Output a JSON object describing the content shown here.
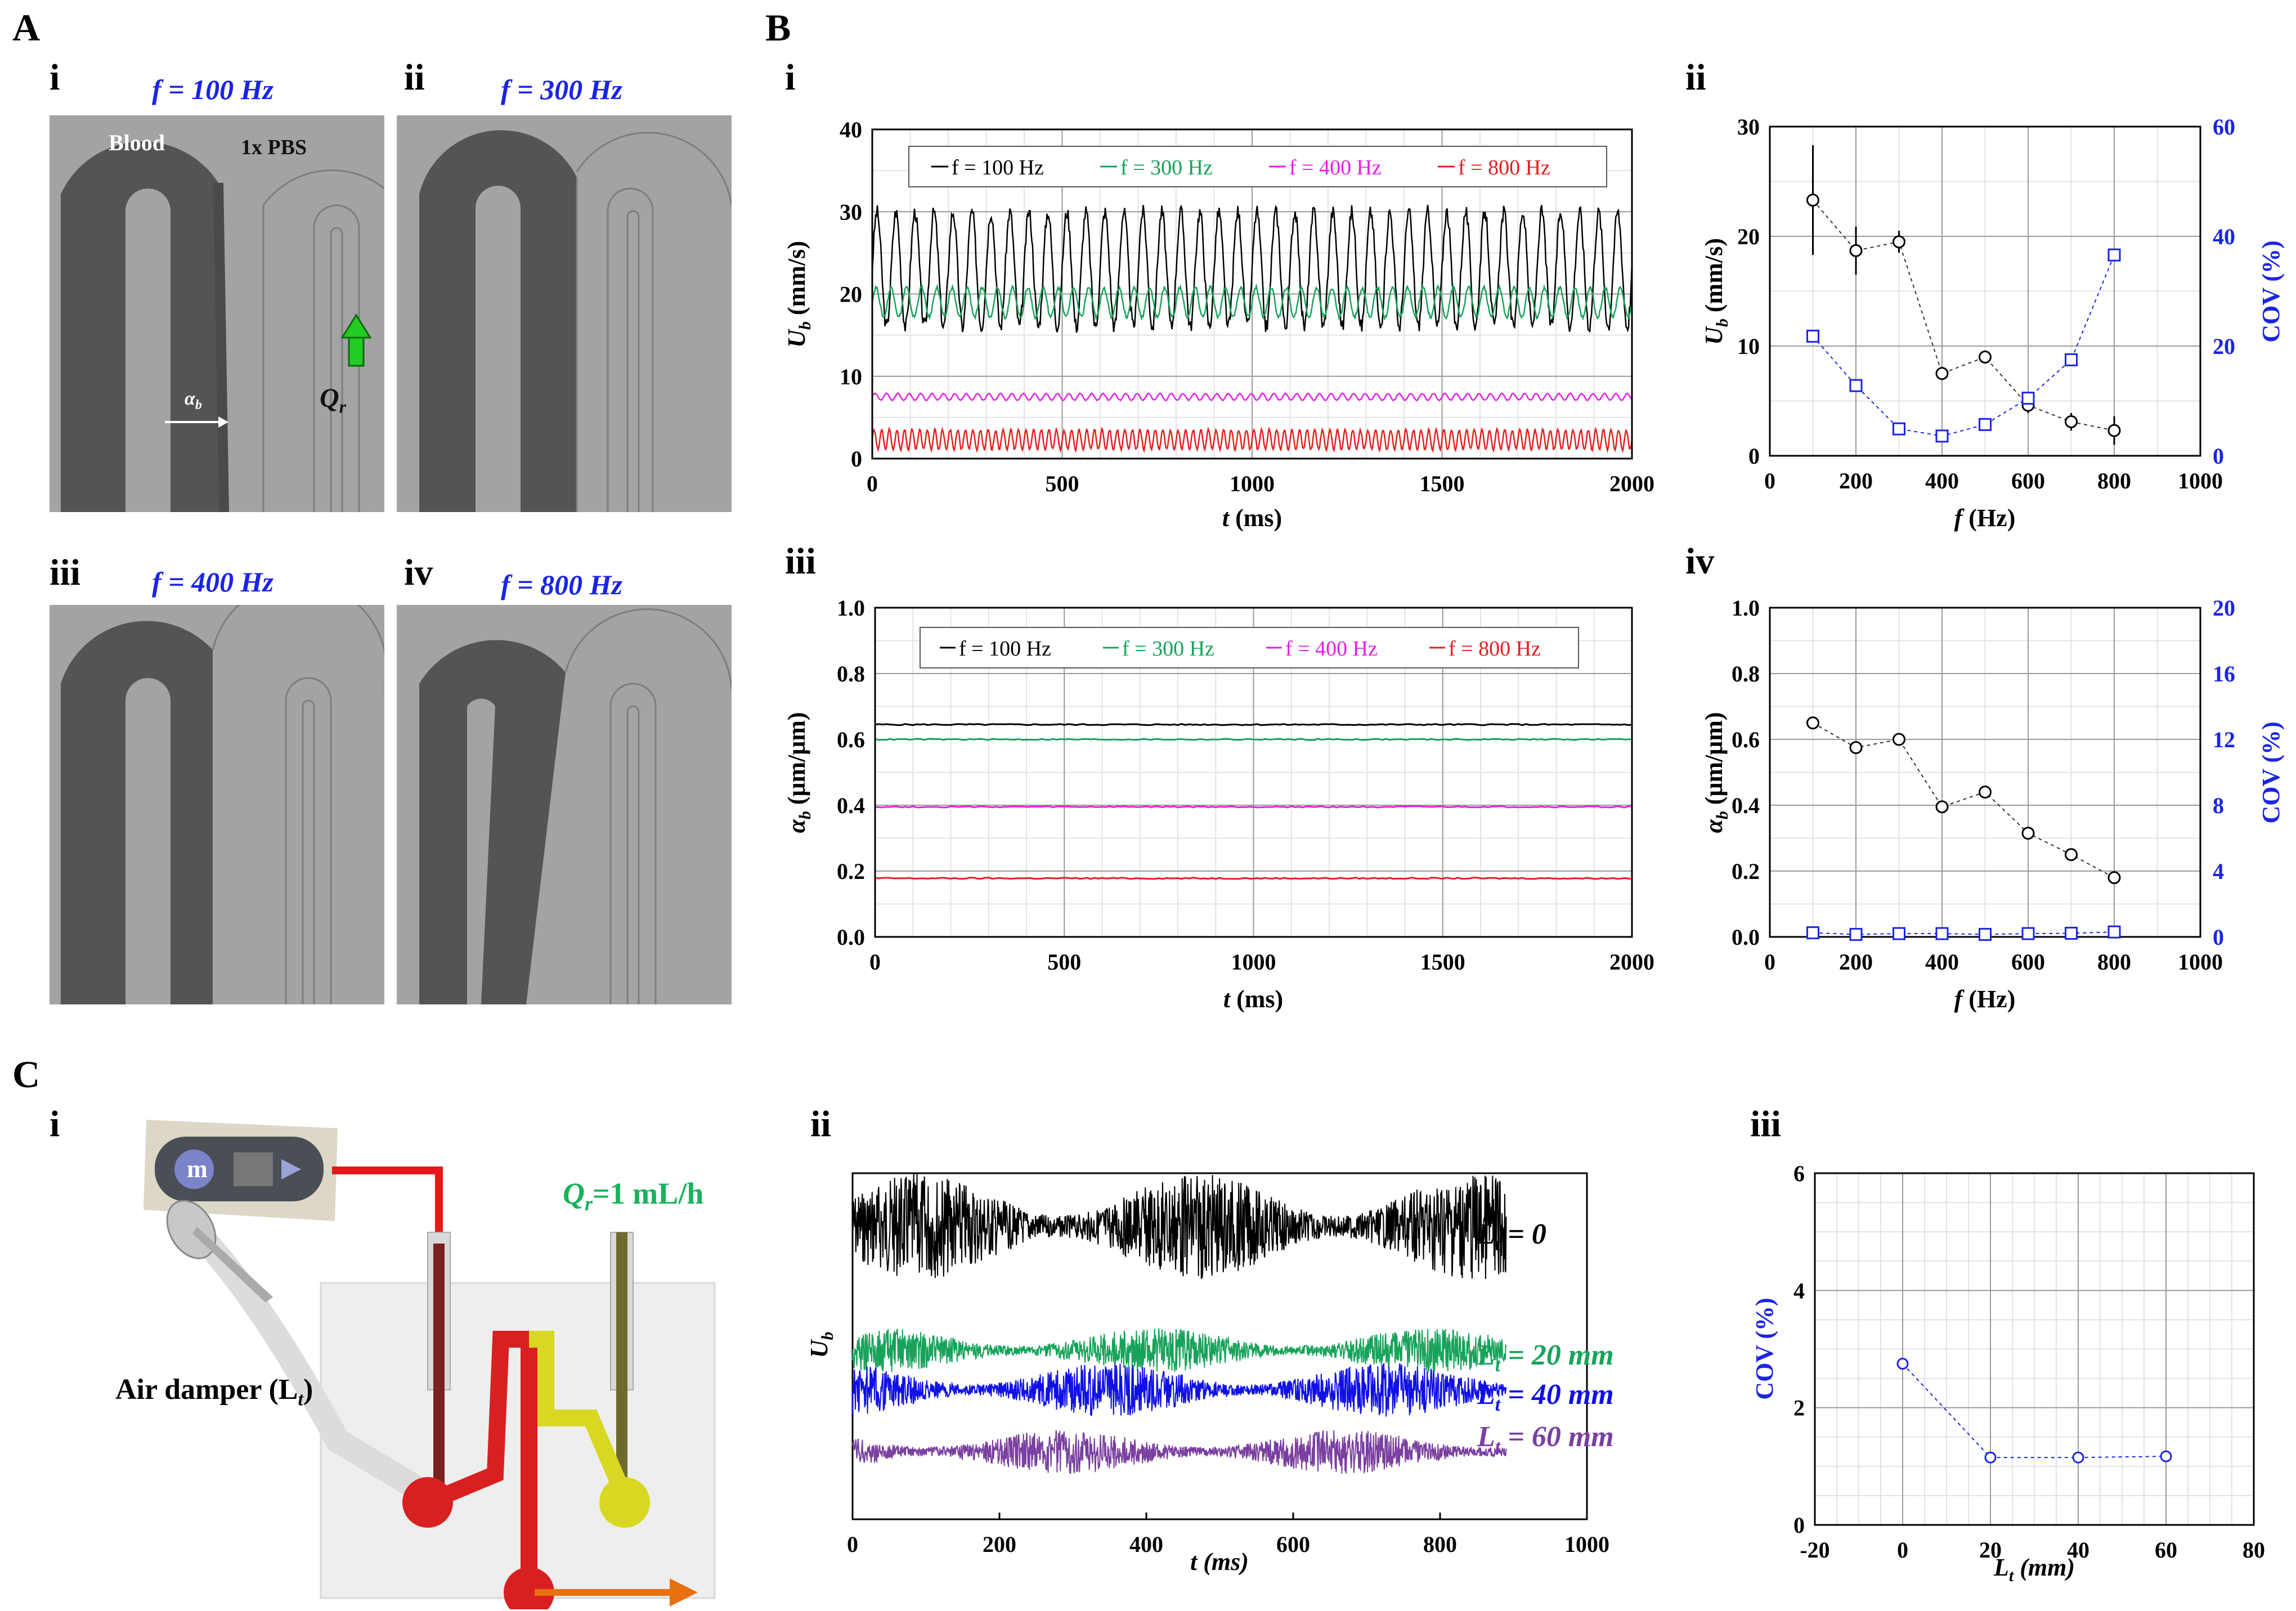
{
  "panels": {
    "A": "A",
    "B": "B",
    "C": "C",
    "i": "i",
    "ii": "ii",
    "iii": "iii",
    "iv": "iv"
  },
  "panelA": {
    "labels": [
      "f = 100 Hz",
      "f = 300 Hz",
      "f = 400 Hz",
      "f = 800 Hz"
    ],
    "blood": "Blood",
    "pbs": "1x PBS",
    "alpha": "α",
    "alpha_sub": "b",
    "qr": "Q",
    "qr_sub": "r"
  },
  "axis": {
    "Ub_label": "U",
    "Ub_sub": "b",
    "Ub_unit": "(mm/s)",
    "ab_label": "α",
    "ab_sub": "b",
    "ab_unit": "(μm/μm)",
    "t_label": "t (ms)",
    "f_label": "f (Hz)",
    "cov": "COV (%)",
    "t_italic": "t",
    "t_unit": "(ms)",
    "f_italic": "f",
    "f_unit": "(Hz)",
    "Lt_label": "L",
    "Lt_sub": "t",
    "Lt_unit": "(mm)"
  },
  "colors": {
    "black": "#000000",
    "green": "#17a35a",
    "magenta": "#e61ee6",
    "red": "#e61e1e",
    "blue": "#1a24e6",
    "purple": "#7a3fa0",
    "darkblue": "#1010e6"
  },
  "panelC": {
    "qr_text": "Q",
    "qr_sub": "r",
    "qr_val": "=1 mL/h",
    "damper": "Air damper (L",
    "damper_sub": "t",
    "damper_end": ")",
    "traces": [
      {
        "L": "L",
        "sub": "t",
        "val": "= 0"
      },
      {
        "L": "L",
        "sub": "t",
        "val": "= 20 mm"
      },
      {
        "L": "L",
        "sub": "t",
        "val": "= 40 mm"
      },
      {
        "L": "L",
        "sub": "t",
        "val": "= 60 mm"
      }
    ]
  },
  "chart_data": [
    {
      "id": "B-i",
      "type": "line",
      "xlabel": "t (ms)",
      "ylabel": "Ub (mm/s)",
      "xlim": [
        0,
        2000
      ],
      "ylim": [
        0,
        40
      ],
      "xticks": [
        "0",
        "500",
        "1000",
        "1500",
        "2000"
      ],
      "yticks": [
        "0",
        "10",
        "20",
        "30",
        "40"
      ],
      "legend": [
        "f = 100 Hz",
        "f = 300 Hz",
        "f = 400 Hz",
        "f = 800 Hz"
      ],
      "series": [
        {
          "name": "f = 100 Hz",
          "mean": 23,
          "amp": 7,
          "period": 50
        },
        {
          "name": "f = 300 Hz",
          "mean": 19,
          "amp": 1.8,
          "period": 40
        },
        {
          "name": "f = 400 Hz",
          "mean": 7.5,
          "amp": 0.4,
          "period": 30
        },
        {
          "name": "f = 800 Hz",
          "mean": 2.3,
          "amp": 1.2,
          "period": 20
        }
      ]
    },
    {
      "id": "B-ii",
      "type": "scatter",
      "xlabel": "f (Hz)",
      "ylabel": "Ub (mm/s)",
      "y2label": "COV (%)",
      "xlim": [
        0,
        1000
      ],
      "ylim": [
        0,
        30
      ],
      "y2lim": [
        0,
        60
      ],
      "xticks": [
        "0",
        "200",
        "400",
        "600",
        "800",
        "1000"
      ],
      "yticks": [
        "0",
        "10",
        "20",
        "30"
      ],
      "y2ticks": [
        "0",
        "20",
        "40",
        "60"
      ],
      "x": [
        100,
        200,
        300,
        400,
        500,
        600,
        700,
        800
      ],
      "series": [
        {
          "name": "Ub",
          "values": [
            23.3,
            18.7,
            19.5,
            7.5,
            9.0,
            4.6,
            3.1,
            2.3
          ],
          "err": [
            5,
            2.2,
            1,
            0.6,
            0.6,
            0.7,
            0.8,
            1.3
          ]
        },
        {
          "name": "COV",
          "values": [
            21.8,
            12.8,
            4.9,
            3.6,
            5.7,
            10.5,
            17.5,
            36.6
          ]
        }
      ]
    },
    {
      "id": "B-iii",
      "type": "line",
      "xlabel": "t (ms)",
      "ylabel": "αb (μm/μm)",
      "xlim": [
        0,
        2000
      ],
      "ylim": [
        0,
        1
      ],
      "xticks": [
        "0",
        "500",
        "1000",
        "1500",
        "2000"
      ],
      "yticks": [
        "0.0",
        "0.2",
        "0.4",
        "0.6",
        "0.8",
        "1.0"
      ],
      "legend": [
        "f = 100 Hz",
        "f = 300 Hz",
        "f = 400 Hz",
        "f = 800 Hz"
      ],
      "series": [
        {
          "name": "f = 100 Hz",
          "mean": 0.645
        },
        {
          "name": "f = 300 Hz",
          "mean": 0.6
        },
        {
          "name": "f = 400 Hz",
          "mean": 0.395
        },
        {
          "name": "f = 800 Hz",
          "mean": 0.178
        }
      ]
    },
    {
      "id": "B-iv",
      "type": "scatter",
      "xlabel": "f (Hz)",
      "ylabel": "αb (μm/μm)",
      "y2label": "COV (%)",
      "xlim": [
        0,
        1000
      ],
      "ylim": [
        0,
        1
      ],
      "y2lim": [
        0,
        20
      ],
      "xticks": [
        "0",
        "200",
        "400",
        "600",
        "800",
        "1000"
      ],
      "yticks": [
        "0.0",
        "0.2",
        "0.4",
        "0.6",
        "0.8",
        "1.0"
      ],
      "y2ticks": [
        "0",
        "4",
        "8",
        "12",
        "16",
        "20"
      ],
      "x": [
        100,
        200,
        300,
        400,
        500,
        600,
        700,
        800
      ],
      "series": [
        {
          "name": "αb",
          "values": [
            0.65,
            0.575,
            0.6,
            0.395,
            0.44,
            0.315,
            0.25,
            0.18
          ]
        },
        {
          "name": "COV",
          "values": [
            0.25,
            0.15,
            0.2,
            0.2,
            0.15,
            0.2,
            0.22,
            0.3
          ]
        }
      ]
    },
    {
      "id": "C-ii",
      "type": "line",
      "xlabel": "t (ms)",
      "ylabel": "Ub",
      "xlim": [
        0,
        1000
      ],
      "xticks": [
        "0",
        "200",
        "400",
        "600",
        "800",
        "1000"
      ],
      "series": [
        {
          "name": "Lt = 0",
          "amp": 1.0
        },
        {
          "name": "Lt = 20 mm",
          "amp": 0.35
        },
        {
          "name": "Lt = 40 mm",
          "amp": 0.45
        },
        {
          "name": "Lt = 60 mm",
          "amp": 0.35
        }
      ]
    },
    {
      "id": "C-iii",
      "type": "scatter",
      "xlabel": "Lt (mm)",
      "ylabel": "COV (%)",
      "xlim": [
        -20,
        80
      ],
      "ylim": [
        0,
        6
      ],
      "xticks": [
        "-20",
        "0",
        "20",
        "40",
        "60",
        "80"
      ],
      "yticks": [
        "0",
        "2",
        "4",
        "6"
      ],
      "x": [
        0,
        20,
        40,
        60
      ],
      "values": [
        2.75,
        1.15,
        1.15,
        1.17
      ]
    }
  ]
}
